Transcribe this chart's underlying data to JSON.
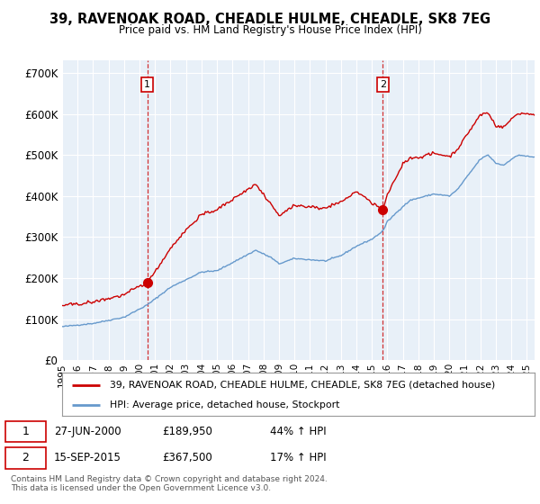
{
  "title": "39, RAVENOAK ROAD, CHEADLE HULME, CHEADLE, SK8 7EG",
  "subtitle": "Price paid vs. HM Land Registry's House Price Index (HPI)",
  "ylabel_ticks": [
    "£0",
    "£100K",
    "£200K",
    "£300K",
    "£400K",
    "£500K",
    "£600K",
    "£700K"
  ],
  "ytick_vals": [
    0,
    100000,
    200000,
    300000,
    400000,
    500000,
    600000,
    700000
  ],
  "ylim": [
    0,
    730000
  ],
  "xlim_start": 1995.0,
  "xlim_end": 2025.5,
  "sale1_date": 2000.49,
  "sale1_price": 189950,
  "sale1_label": "1",
  "sale2_date": 2015.71,
  "sale2_price": 367500,
  "sale2_label": "2",
  "red_line_color": "#cc0000",
  "blue_line_color": "#6699cc",
  "grid_color": "#cccccc",
  "plot_bg_color": "#e8f0f8",
  "background_color": "#ffffff",
  "legend_label_red": "39, RAVENOAK ROAD, CHEADLE HULME, CHEADLE, SK8 7EG (detached house)",
  "legend_label_blue": "HPI: Average price, detached house, Stockport",
  "annotation1_date": "27-JUN-2000",
  "annotation1_price": "£189,950",
  "annotation1_hpi": "44% ↑ HPI",
  "annotation2_date": "15-SEP-2015",
  "annotation2_price": "£367,500",
  "annotation2_hpi": "17% ↑ HPI",
  "footer": "Contains HM Land Registry data © Crown copyright and database right 2024.\nThis data is licensed under the Open Government Licence v3.0."
}
